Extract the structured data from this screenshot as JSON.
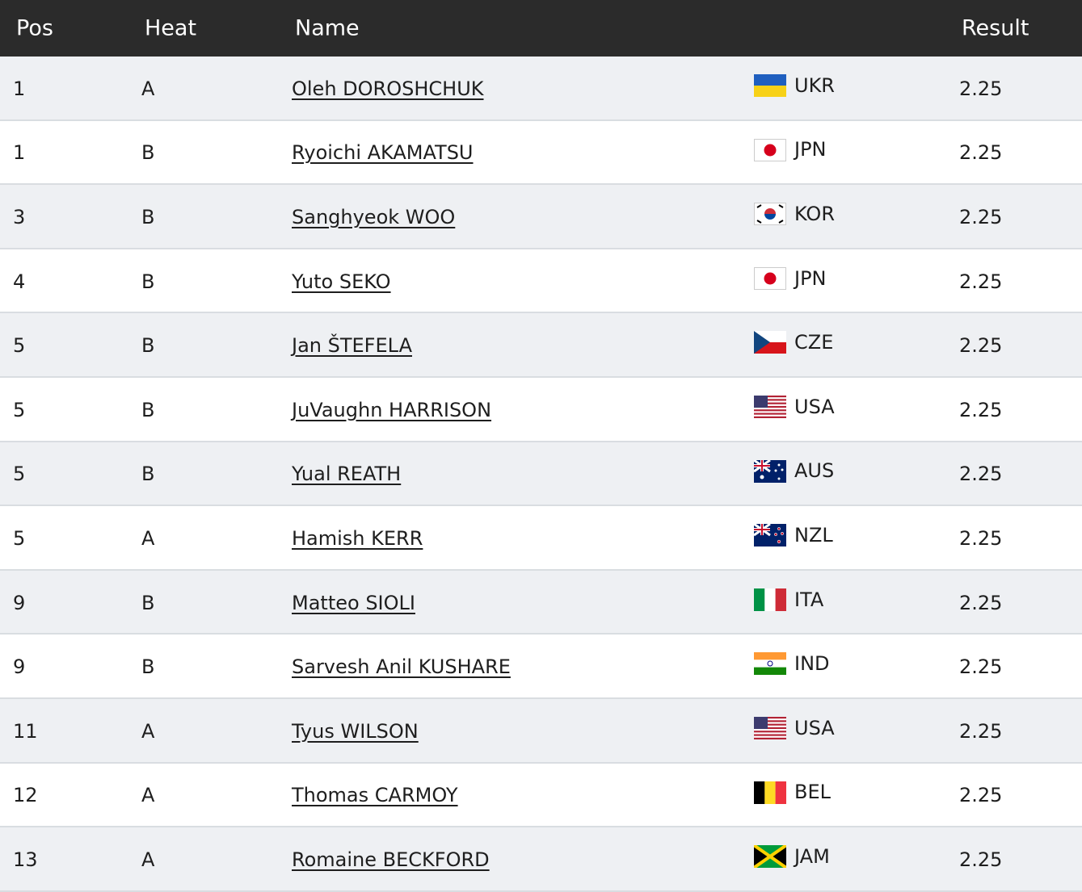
{
  "header": {
    "pos": "Pos",
    "heat": "Heat",
    "name": "Name",
    "result": "Result"
  },
  "rows": [
    {
      "pos": 1,
      "heat": "A",
      "name": "Oleh DOROSHCHUK",
      "country": "UKR",
      "result": 2.25
    },
    {
      "pos": 1,
      "heat": "B",
      "name": "Ryoichi AKAMATSU",
      "country": "JPN",
      "result": 2.25
    },
    {
      "pos": 3,
      "heat": "B",
      "name": "Sanghyeok WOO",
      "country": "KOR",
      "result": 2.25
    },
    {
      "pos": 4,
      "heat": "B",
      "name": "Yuto SEKO",
      "country": "JPN",
      "result": 2.25
    },
    {
      "pos": 5,
      "heat": "B",
      "name": "Jan ŠTEFELA",
      "country": "CZE",
      "result": 2.25
    },
    {
      "pos": 5,
      "heat": "B",
      "name": "JuVaughn HARRISON",
      "country": "USA",
      "result": 2.25
    },
    {
      "pos": 5,
      "heat": "B",
      "name": "Yual REATH",
      "country": "AUS",
      "result": 2.25
    },
    {
      "pos": 5,
      "heat": "A",
      "name": "Hamish KERR",
      "country": "NZL",
      "result": 2.25
    },
    {
      "pos": 9,
      "heat": "B",
      "name": "Matteo SIOLI",
      "country": "ITA",
      "result": 2.25
    },
    {
      "pos": 9,
      "heat": "B",
      "name": "Sarvesh Anil KUSHARE",
      "country": "IND",
      "result": 2.25
    },
    {
      "pos": 11,
      "heat": "A",
      "name": "Tyus WILSON",
      "country": "USA",
      "result": 2.25
    },
    {
      "pos": 12,
      "heat": "A",
      "name": "Thomas CARMOY",
      "country": "BEL",
      "result": 2.25
    },
    {
      "pos": 13,
      "heat": "A",
      "name": "Romaine BECKFORD",
      "country": "JAM",
      "result": 2.25
    }
  ]
}
